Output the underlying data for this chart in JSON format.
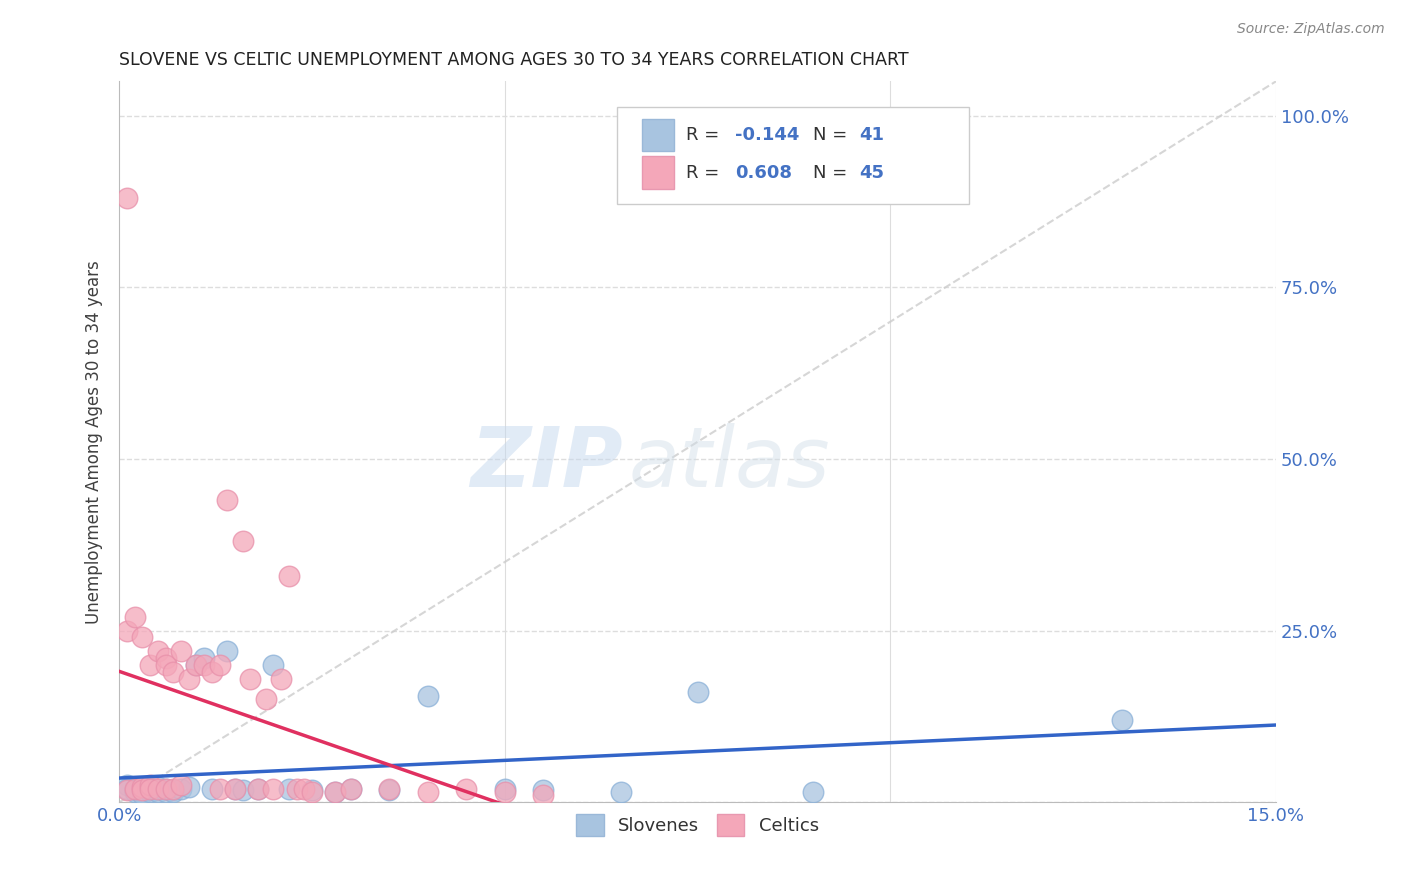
{
  "title": "SLOVENE VS CELTIC UNEMPLOYMENT AMONG AGES 30 TO 34 YEARS CORRELATION CHART",
  "source": "Source: ZipAtlas.com",
  "ylabel": "Unemployment Among Ages 30 to 34 years",
  "xlim": [
    0.0,
    0.15
  ],
  "ylim": [
    0.0,
    1.05
  ],
  "slovene_color": "#a8c4e0",
  "celtic_color": "#f4a7b9",
  "slovene_line_color": "#3264c8",
  "celtic_line_color": "#e03060",
  "diagonal_color": "#cccccc",
  "R_slovene": -0.144,
  "N_slovene": 41,
  "R_celtic": 0.608,
  "N_celtic": 45,
  "slovene_x": [
    0.001,
    0.001,
    0.002,
    0.002,
    0.002,
    0.003,
    0.003,
    0.003,
    0.003,
    0.004,
    0.004,
    0.004,
    0.005,
    0.005,
    0.005,
    0.006,
    0.006,
    0.007,
    0.007,
    0.008,
    0.009,
    0.01,
    0.011,
    0.012,
    0.014,
    0.015,
    0.016,
    0.018,
    0.02,
    0.022,
    0.025,
    0.028,
    0.03,
    0.035,
    0.04,
    0.05,
    0.055,
    0.065,
    0.075,
    0.09,
    0.13
  ],
  "slovene_y": [
    0.025,
    0.02,
    0.02,
    0.018,
    0.015,
    0.022,
    0.018,
    0.015,
    0.012,
    0.02,
    0.018,
    0.015,
    0.022,
    0.018,
    0.015,
    0.02,
    0.015,
    0.018,
    0.015,
    0.02,
    0.022,
    0.2,
    0.21,
    0.02,
    0.22,
    0.02,
    0.018,
    0.02,
    0.2,
    0.02,
    0.018,
    0.015,
    0.02,
    0.018,
    0.155,
    0.02,
    0.018,
    0.015,
    0.16,
    0.015,
    0.12
  ],
  "celtic_x": [
    0.001,
    0.001,
    0.001,
    0.002,
    0.002,
    0.003,
    0.003,
    0.003,
    0.004,
    0.004,
    0.004,
    0.005,
    0.005,
    0.006,
    0.006,
    0.006,
    0.007,
    0.007,
    0.008,
    0.008,
    0.009,
    0.01,
    0.011,
    0.012,
    0.013,
    0.013,
    0.014,
    0.015,
    0.016,
    0.017,
    0.018,
    0.019,
    0.02,
    0.021,
    0.022,
    0.023,
    0.024,
    0.025,
    0.028,
    0.03,
    0.035,
    0.04,
    0.045,
    0.05,
    0.055
  ],
  "celtic_y": [
    0.88,
    0.25,
    0.018,
    0.27,
    0.02,
    0.24,
    0.022,
    0.018,
    0.2,
    0.025,
    0.02,
    0.22,
    0.02,
    0.21,
    0.2,
    0.02,
    0.19,
    0.02,
    0.22,
    0.025,
    0.18,
    0.2,
    0.2,
    0.19,
    0.2,
    0.02,
    0.44,
    0.02,
    0.38,
    0.18,
    0.02,
    0.15,
    0.02,
    0.18,
    0.33,
    0.02,
    0.02,
    0.015,
    0.015,
    0.02,
    0.02,
    0.015,
    0.02,
    0.015,
    0.01
  ],
  "watermark_zip": "ZIP",
  "watermark_atlas": "atlas",
  "background_color": "#ffffff",
  "grid_color": "#dddddd"
}
